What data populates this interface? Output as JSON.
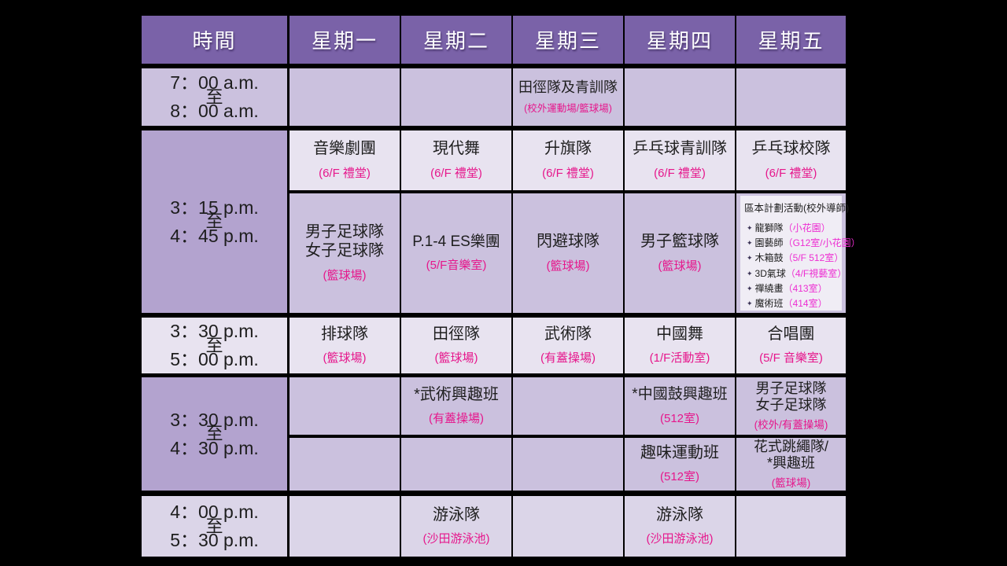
{
  "palette": {
    "page_bg": "#000000",
    "header_bg": "#7A62A8",
    "header_text": "#FFFFFF",
    "time_merged_bg": "#B3A3CF",
    "cell_mid_bg": "#CBC1DE",
    "cell_light_bg": "#E8E3F0",
    "cell_soft_bg": "#DBD5E8",
    "box_bg": "#F0EDF5",
    "location_magenta": "#E6178C",
    "box_magenta": "#ED2ED2",
    "text_black": "#1E1E1E"
  },
  "header": {
    "time": "時間",
    "days": [
      "星期一",
      "星期二",
      "星期三",
      "星期四",
      "星期五"
    ]
  },
  "rows": {
    "r1": {
      "time": {
        "start": "7：00 a.m.",
        "mid": "至",
        "end": "8：00 a.m."
      },
      "wed": {
        "title": "田徑隊及青訓隊",
        "loc": "(校外運動場/籃球場)"
      }
    },
    "r2": {
      "time": {
        "start": "3：15 p.m.",
        "mid": "至",
        "end": "4：45 p.m."
      },
      "a": {
        "mon": {
          "title": "音樂劇團",
          "loc": "(6/F 禮堂)"
        },
        "tue": {
          "title": "現代舞",
          "loc": "(6/F 禮堂)"
        },
        "wed": {
          "title": "升旗隊",
          "loc": "(6/F 禮堂)"
        },
        "thu": {
          "title": "乒乓球青訓隊",
          "loc": "(6/F 禮堂)"
        },
        "fri": {
          "title": "乒乓球校隊",
          "loc": "(6/F 禮堂)"
        }
      },
      "b": {
        "mon": {
          "line1": "男子足球隊",
          "line2": "女子足球隊",
          "loc": "(籃球場)"
        },
        "tue": {
          "title": "P.1-4 ES樂團",
          "loc": "(5/F音樂室)"
        },
        "wed": {
          "title": "閃避球隊",
          "loc": "(籃球場)"
        },
        "thu": {
          "title": "男子籃球隊",
          "loc": "(籃球場)"
        },
        "fri_box": {
          "header": "區本計劃活動(校外導師)",
          "bullet": "✦",
          "items": [
            {
              "name": "龍獅隊",
              "loc": "（小花園）"
            },
            {
              "name": "園藝師",
              "loc": "（G12室/小花園）"
            },
            {
              "name": "木箱鼓",
              "loc": "（5/F 512室）"
            },
            {
              "name": "3D氣球",
              "loc": "（4/F視藝室）"
            },
            {
              "name": "禪繞畫",
              "loc": "（413室）"
            },
            {
              "name": "魔術班",
              "loc": "（414室）"
            }
          ]
        }
      }
    },
    "r3": {
      "time": {
        "start": "3：30 p.m.",
        "mid": "至",
        "end": "5：00 p.m."
      },
      "mon": {
        "title": "排球隊",
        "loc": "(籃球場)"
      },
      "tue": {
        "title": "田徑隊",
        "loc": "(籃球場)"
      },
      "wed": {
        "title": "武術隊",
        "loc": "(有蓋操場)"
      },
      "thu": {
        "title": "中國舞",
        "loc": "(1/F活動室)"
      },
      "fri": {
        "title": "合唱團",
        "loc": "(5/F 音樂室)"
      }
    },
    "r4": {
      "time": {
        "start": "3：30 p.m.",
        "mid": "至",
        "end": "4：30 p.m."
      },
      "a": {
        "tue": {
          "title": "*武術興趣班",
          "loc": "(有蓋操場)"
        },
        "thu": {
          "title": "*中國鼓興趣班",
          "loc": "(512室)"
        },
        "fri": {
          "line1": "男子足球隊",
          "line2": "女子足球隊",
          "loc": "(校外/有蓋操場)"
        }
      },
      "b": {
        "thu": {
          "title": "趣味運動班",
          "loc": "(512室)"
        },
        "fri": {
          "line1": "花式跳繩隊/",
          "line2": "*興趣班",
          "loc": "(籃球場)"
        }
      }
    },
    "r5": {
      "time": {
        "start": "4：00 p.m.",
        "mid": "至",
        "end": "5：30 p.m."
      },
      "tue": {
        "title": "游泳隊",
        "loc": "(沙田游泳池)"
      },
      "thu": {
        "title": "游泳隊",
        "loc": "(沙田游泳池)"
      }
    }
  }
}
